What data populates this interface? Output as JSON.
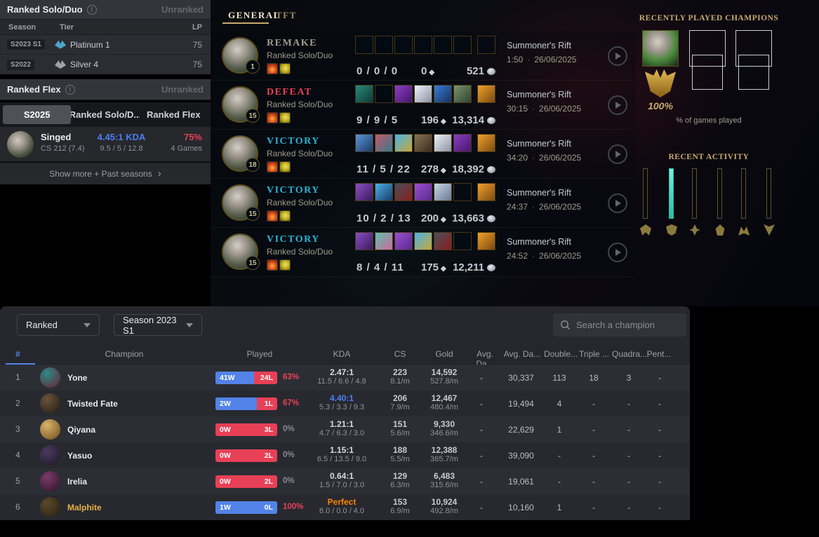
{
  "colors": {
    "accent_gold": "#c8aa6e",
    "win_blue": "#5383e8",
    "loss_red": "#e84057",
    "victory": "#2bb3d6",
    "defeat": "#e84057",
    "remake": "#a09b8c",
    "perfect_orange": "#ff8200",
    "kda_blue": "#4c7ef3",
    "activity_teal": "#3fd9c1"
  },
  "sidebar": {
    "solo_panel": {
      "title": "Ranked Solo/Duo",
      "status": "Unranked",
      "col_season": "Season",
      "col_tier": "Tier",
      "col_lp": "LP",
      "rows": [
        {
          "season": "S2023 S1",
          "tier": "Platinum 1",
          "lp": "75",
          "color": "#4da6c9"
        },
        {
          "season": "S2022",
          "tier": "Silver 4",
          "lp": "75",
          "color": "#9aa3a8"
        }
      ]
    },
    "flex_panel": {
      "title": "Ranked Flex",
      "status": "Unranked"
    },
    "season_tabs": [
      {
        "label": "S2025",
        "active": true
      },
      {
        "label": "Ranked Solo/D...",
        "active": false
      },
      {
        "label": "Ranked Flex",
        "active": false
      }
    ],
    "summary": {
      "champion": "Singed",
      "cs": "CS 212 (7.4)",
      "kda": "4.45:1 KDA",
      "kda_detail": "9.5 / 5 / 12.8",
      "winrate": "75%",
      "games": "4 Games"
    },
    "show_more": "Show more + Past seasons",
    "show_more_chevron": "›"
  },
  "history": {
    "tabs": [
      {
        "label": "GENERAL",
        "active": true
      },
      {
        "label": "TFT",
        "active": false
      }
    ],
    "matches": [
      {
        "result": "REMAKE",
        "color": "#a09b8c",
        "queue": "Ranked Solo/Duo",
        "level": "1",
        "kda": "0 / 0 / 0",
        "cs": "0",
        "gold": "521",
        "map": "Summoner's Rift",
        "duration": "1:50",
        "date": "26/06/2025",
        "items": [
          null,
          null,
          null,
          null,
          null,
          null,
          null
        ]
      },
      {
        "result": "DEFEAT",
        "color": "#e84057",
        "queue": "Ranked Solo/Duo",
        "level": "15",
        "kda": "9 / 9 / 5",
        "cs": "196",
        "gold": "13,314",
        "map": "Summoner's Rift",
        "duration": "30:15",
        "date": "26/06/2025",
        "items": [
          [
            "#2a8a78",
            "#0b3a36"
          ],
          null,
          [
            "#8a3fc0",
            "#45156e"
          ],
          [
            "#eef1f6",
            "#8a93a6"
          ],
          [
            "#3a7bd6",
            "#16325e"
          ],
          [
            "#7a936a",
            "#2e4430"
          ],
          [
            "#f0a02a",
            "#7a4a10"
          ]
        ]
      },
      {
        "result": "VICTORY",
        "color": "#2bb3d6",
        "queue": "Ranked Solo/Duo",
        "level": "18",
        "kda": "11 / 5 / 22",
        "cs": "278",
        "gold": "18,392",
        "map": "Summoner's Rift",
        "duration": "34:20",
        "date": "26/06/2025",
        "items": [
          [
            "#5a96d8",
            "#1c3a66"
          ],
          [
            "#c05a6e",
            "#3a7a8a"
          ],
          [
            "#49b0e8",
            "#c8aa3a"
          ],
          [
            "#8a7354",
            "#3a2c1e"
          ],
          [
            "#eef1f6",
            "#8a93a6"
          ],
          [
            "#8a3fc0",
            "#45156e"
          ],
          [
            "#f0a02a",
            "#7a4a10"
          ]
        ]
      },
      {
        "result": "VICTORY",
        "color": "#2bb3d6",
        "queue": "Ranked Solo/Duo",
        "level": "15",
        "kda": "10 / 2 / 13",
        "cs": "200",
        "gold": "13,663",
        "map": "Summoner's Rift",
        "duration": "24:37",
        "date": "26/06/2025",
        "items": [
          [
            "#8a4fc0",
            "#3a1a5e"
          ],
          [
            "#49b0e8",
            "#1c3a66"
          ],
          [
            "#4a4f5a",
            "#8a1e1e"
          ],
          [
            "#9a4fd0",
            "#5a2a8e"
          ],
          [
            "#c8d4e4",
            "#6a7a96"
          ],
          null,
          [
            "#f0a02a",
            "#7a4a10"
          ]
        ]
      },
      {
        "result": "VICTORY",
        "color": "#2bb3d6",
        "queue": "Ranked Solo/Duo",
        "level": "15",
        "kda": "8 / 4 / 11",
        "cs": "175",
        "gold": "12,211",
        "map": "Summoner's Rift",
        "duration": "24:52",
        "date": "26/06/2025",
        "items": [
          [
            "#8a4fc0",
            "#3a1a5e"
          ],
          [
            "#5ec0b0",
            "#d06a9a"
          ],
          [
            "#9a4fd0",
            "#5a2a8e"
          ],
          [
            "#49b0e8",
            "#c8aa3a"
          ],
          [
            "#4a4f5a",
            "#8a1e1e"
          ],
          null,
          [
            "#f0a02a",
            "#7a4a10"
          ]
        ]
      }
    ]
  },
  "recent_champions": {
    "title": "RECENTLY PLAYED CHAMPIONS",
    "champion": "Singed",
    "played_percent": "100%",
    "caption": "% of games played"
  },
  "recent_activity": {
    "title": "RECENT ACTIVITY",
    "bars": [
      false,
      true,
      false,
      false,
      false,
      false
    ]
  },
  "stats": {
    "filters": {
      "queue": "Ranked",
      "season": "Season 2023 S1",
      "search_placeholder": "Search a champion"
    },
    "headers": {
      "hash": "#",
      "champion": "Champion",
      "played": "Played",
      "kda": "KDA",
      "cs": "CS",
      "gold": "Gold",
      "avg1": "Avg. Da...",
      "avg2": "Avg. Da...",
      "double": "Double...",
      "triple": "Triple ...",
      "quadra": "Quadra...",
      "penta": "Pent..."
    },
    "rows": [
      {
        "rank": "1",
        "name": "Yone",
        "name_color": "#e8eaed",
        "avatar": [
          "#2a8a8a",
          "#6e1e2e"
        ],
        "wins": 41,
        "losses": 24,
        "w_label": "41W",
        "l_label": "24L",
        "pct": "63%",
        "pct_color": "#e84057",
        "kda": "2.47:1",
        "kda_color": "#d5d9de",
        "kda_sub": "11.5 / 6.6 / 4.8",
        "cs": "223",
        "cs_sub": "8.1/m",
        "gold": "14,592",
        "gold_sub": "527.8/m",
        "avg1": "-",
        "avg2": "30,337",
        "double": "113",
        "triple": "18",
        "quadra": "3",
        "penta": "-"
      },
      {
        "rank": "2",
        "name": "Twisted Fate",
        "name_color": "#e8eaed",
        "avatar": [
          "#6a5238",
          "#221c18"
        ],
        "wins": 2,
        "losses": 1,
        "w_label": "2W",
        "l_label": "1L",
        "pct": "67%",
        "pct_color": "#e84057",
        "kda": "4.40:1",
        "kda_color": "#4c7ef3",
        "kda_sub": "5.3 / 3.3 / 9.3",
        "cs": "206",
        "cs_sub": "7.9/m",
        "gold": "12,467",
        "gold_sub": "480.4/m",
        "avg1": "-",
        "avg2": "19,494",
        "double": "4",
        "triple": "-",
        "quadra": "-",
        "penta": "-"
      },
      {
        "rank": "3",
        "name": "Qiyana",
        "name_color": "#e8eaed",
        "avatar": [
          "#d8b468",
          "#6e4a1e"
        ],
        "wins": 0,
        "losses": 3,
        "w_label": "0W",
        "l_label": "3L",
        "pct": "0%",
        "pct_color": "#868b93",
        "kda": "1.21:1",
        "kda_color": "#d5d9de",
        "kda_sub": "4.7 / 6.3 / 3.0",
        "cs": "151",
        "cs_sub": "5.6/m",
        "gold": "9,330",
        "gold_sub": "346.6/m",
        "avg1": "-",
        "avg2": "22,629",
        "double": "1",
        "triple": "-",
        "quadra": "-",
        "penta": "-"
      },
      {
        "rank": "4",
        "name": "Yasuo",
        "name_color": "#e8eaed",
        "avatar": [
          "#4a3a5e",
          "#1c1626"
        ],
        "wins": 0,
        "losses": 2,
        "w_label": "0W",
        "l_label": "2L",
        "pct": "0%",
        "pct_color": "#868b93",
        "kda": "1.15:1",
        "kda_color": "#d5d9de",
        "kda_sub": "6.5 / 13.5 / 9.0",
        "cs": "188",
        "cs_sub": "5.5/m",
        "gold": "12,388",
        "gold_sub": "365.7/m",
        "avg1": "-",
        "avg2": "39,090",
        "double": "-",
        "triple": "-",
        "quadra": "-",
        "penta": "-"
      },
      {
        "rank": "5",
        "name": "Irelia",
        "name_color": "#e8eaed",
        "avatar": [
          "#7a3a6a",
          "#2e1228"
        ],
        "wins": 0,
        "losses": 2,
        "w_label": "0W",
        "l_label": "2L",
        "pct": "0%",
        "pct_color": "#868b93",
        "kda": "0.64:1",
        "kda_color": "#d5d9de",
        "kda_sub": "1.5 / 7.0 / 3.0",
        "cs": "129",
        "cs_sub": "6.3/m",
        "gold": "6,483",
        "gold_sub": "315.6/m",
        "avg1": "-",
        "avg2": "19,061",
        "double": "-",
        "triple": "-",
        "quadra": "-",
        "penta": "-"
      },
      {
        "rank": "6",
        "name": "Malphite",
        "name_color": "#e5b045",
        "avatar": [
          "#5a4a2a",
          "#241e12"
        ],
        "wins": 1,
        "losses": 0,
        "w_label": "1W",
        "l_label": "0L",
        "pct": "100%",
        "pct_color": "#e84057",
        "kda": "Perfect",
        "kda_color": "#ff8200",
        "kda_sub": "8.0 / 0.0 / 4.0",
        "cs": "153",
        "cs_sub": "6.9/m",
        "gold": "10,924",
        "gold_sub": "492.8/m",
        "avg1": "-",
        "avg2": "10,160",
        "double": "1",
        "triple": "-",
        "quadra": "-",
        "penta": "-"
      }
    ]
  }
}
